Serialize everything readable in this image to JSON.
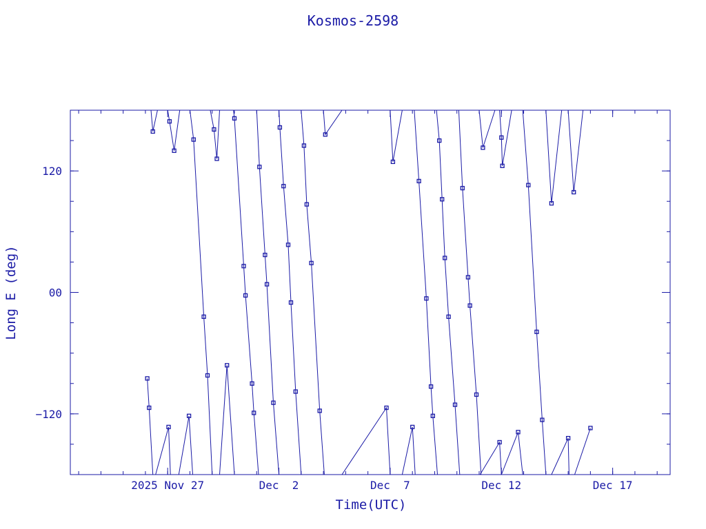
{
  "chart_data": {
    "type": "line",
    "title": "Kosmos-2598",
    "xlabel": "Time(UTC)",
    "ylabel": "Long E (deg)",
    "x_unit": "UTC date",
    "x_range": [
      "2025-11-22T15:00",
      "2025-12-19T14:00"
    ],
    "ylim": [
      -180,
      180
    ],
    "y_ticks": [
      120,
      0,
      -120
    ],
    "y_tick_labels": [
      "120",
      "00",
      "−120"
    ],
    "x_ticks": [
      "2025-11-27",
      "2025-12-02",
      "2025-12-07",
      "2025-12-12",
      "2025-12-17"
    ],
    "x_tick_labels": [
      "2025 Nov 27",
      "Dec  2",
      "Dec  7",
      "Dec 12",
      "Dec 17"
    ],
    "grid": false,
    "legend": "none",
    "color": "#1a1aa6",
    "series": [
      {
        "values": [
          [
            "2025-11-26T02:00",
            -85
          ],
          [
            "2025-11-26T04:00",
            -114
          ],
          [
            "2025-11-26T08:00",
            -180
          ]
        ]
      },
      {
        "values": [
          [
            "2025-11-26T06:00",
            180
          ],
          [
            "2025-11-26T08:00",
            159
          ],
          [
            "2025-11-26T13:00",
            180
          ]
        ]
      },
      {
        "values": [
          [
            "2025-11-26T11:00",
            -180
          ],
          [
            "2025-11-27T01:00",
            -133
          ],
          [
            "2025-11-27T03:00",
            -180
          ]
        ]
      },
      {
        "values": [
          [
            "2025-11-27T00:00",
            180
          ],
          [
            "2025-11-27T02:00",
            169
          ],
          [
            "2025-11-27T07:00",
            140
          ],
          [
            "2025-11-27T13:00",
            180
          ]
        ]
      },
      {
        "values": [
          [
            "2025-11-27T12:00",
            -180
          ],
          [
            "2025-11-27T23:00",
            -122
          ],
          [
            "2025-11-28T03:00",
            -180
          ]
        ]
      },
      {
        "values": [
          [
            "2025-11-28T00:00",
            180
          ],
          [
            "2025-11-28T04:00",
            151
          ],
          [
            "2025-11-28T15:00",
            -24
          ],
          [
            "2025-11-28T19:00",
            -82
          ],
          [
            "2025-11-29T00:00",
            -180
          ]
        ]
      },
      {
        "values": [
          [
            "2025-11-28T22:00",
            180
          ],
          [
            "2025-11-29T02:00",
            161
          ],
          [
            "2025-11-29T05:00",
            132
          ],
          [
            "2025-11-29T08:00",
            180
          ]
        ]
      },
      {
        "values": [
          [
            "2025-11-29T08:00",
            -180
          ],
          [
            "2025-11-29T16:00",
            -72
          ],
          [
            "2025-11-30T00:00",
            -180
          ]
        ]
      },
      {
        "values": [
          [
            "2025-11-29T23:00",
            180
          ],
          [
            "2025-11-30T00:00",
            172
          ],
          [
            "2025-11-30T10:00",
            26
          ],
          [
            "2025-11-30T12:00",
            -3
          ],
          [
            "2025-11-30T19:00",
            -90
          ],
          [
            "2025-11-30T21:00",
            -119
          ],
          [
            "2025-12-01T02:00",
            -180
          ]
        ]
      },
      {
        "values": [
          [
            "2025-12-01T00:00",
            180
          ],
          [
            "2025-12-01T03:00",
            124
          ],
          [
            "2025-12-01T09:00",
            37
          ],
          [
            "2025-12-01T11:00",
            8
          ],
          [
            "2025-12-01T18:00",
            -109
          ],
          [
            "2025-12-02T00:00",
            -180
          ]
        ]
      },
      {
        "values": [
          [
            "2025-12-02T00:00",
            180
          ],
          [
            "2025-12-02T01:00",
            163
          ],
          [
            "2025-12-02T05:00",
            105
          ],
          [
            "2025-12-02T10:00",
            47
          ],
          [
            "2025-12-02T13:00",
            -10
          ],
          [
            "2025-12-02T18:00",
            -98
          ],
          [
            "2025-12-03T00:00",
            -180
          ]
        ]
      },
      {
        "values": [
          [
            "2025-12-03T00:00",
            180
          ],
          [
            "2025-12-03T03:00",
            145
          ],
          [
            "2025-12-03T06:00",
            87
          ],
          [
            "2025-12-03T11:00",
            29
          ],
          [
            "2025-12-03T20:00",
            -117
          ],
          [
            "2025-12-04T01:00",
            -180
          ]
        ]
      },
      {
        "values": [
          [
            "2025-12-04T00:00",
            180
          ],
          [
            "2025-12-04T02:00",
            156
          ],
          [
            "2025-12-04T20:00",
            180
          ]
        ]
      },
      {
        "values": [
          [
            "2025-12-04T20:00",
            -180
          ],
          [
            "2025-12-06T20:00",
            -114
          ],
          [
            "2025-12-07T00:00",
            -180
          ]
        ]
      },
      {
        "values": [
          [
            "2025-12-07T00:00",
            180
          ],
          [
            "2025-12-07T03:00",
            129
          ],
          [
            "2025-12-07T13:00",
            180
          ]
        ]
      },
      {
        "values": [
          [
            "2025-12-07T13:00",
            -180
          ],
          [
            "2025-12-08T00:00",
            -133
          ],
          [
            "2025-12-08T03:00",
            -180
          ]
        ]
      },
      {
        "values": [
          [
            "2025-12-08T02:00",
            180
          ],
          [
            "2025-12-08T07:00",
            110
          ],
          [
            "2025-12-08T15:00",
            -6
          ],
          [
            "2025-12-08T20:00",
            -93
          ],
          [
            "2025-12-08T22:00",
            -122
          ],
          [
            "2025-12-09T03:00",
            -180
          ]
        ]
      },
      {
        "values": [
          [
            "2025-12-09T02:00",
            180
          ],
          [
            "2025-12-09T05:00",
            150
          ],
          [
            "2025-12-09T08:00",
            92
          ],
          [
            "2025-12-09T11:00",
            34
          ],
          [
            "2025-12-09T15:00",
            -24
          ],
          [
            "2025-12-09T22:00",
            -111
          ],
          [
            "2025-12-10T03:00",
            -180
          ]
        ]
      },
      {
        "values": [
          [
            "2025-12-10T02:00",
            180
          ],
          [
            "2025-12-10T06:00",
            103
          ],
          [
            "2025-12-10T12:00",
            15
          ],
          [
            "2025-12-10T14:00",
            -13
          ],
          [
            "2025-12-10T21:00",
            -101
          ],
          [
            "2025-12-11T02:00",
            -180
          ]
        ]
      },
      {
        "values": [
          [
            "2025-12-11T00:00",
            180
          ],
          [
            "2025-12-11T04:00",
            143
          ],
          [
            "2025-12-11T17:00",
            180
          ]
        ]
      },
      {
        "values": [
          [
            "2025-12-11T01:00",
            -180
          ],
          [
            "2025-12-11T22:00",
            -148
          ],
          [
            "2025-12-12T00:00",
            -180
          ]
        ]
      },
      {
        "values": [
          [
            "2025-12-11T22:00",
            180
          ],
          [
            "2025-12-12T00:00",
            153
          ],
          [
            "2025-12-12T01:00",
            125
          ],
          [
            "2025-12-12T11:00",
            180
          ]
        ]
      },
      {
        "values": [
          [
            "2025-12-12T00:00",
            -180
          ],
          [
            "2025-12-12T18:00",
            -138
          ],
          [
            "2025-12-12T23:00",
            -180
          ]
        ]
      },
      {
        "values": [
          [
            "2025-12-12T23:00",
            180
          ],
          [
            "2025-12-13T05:00",
            106
          ],
          [
            "2025-12-13T14:00",
            -39
          ],
          [
            "2025-12-13T20:00",
            -126
          ],
          [
            "2025-12-14T00:00",
            -180
          ]
        ]
      },
      {
        "values": [
          [
            "2025-12-14T00:00",
            180
          ],
          [
            "2025-12-14T06:00",
            88
          ],
          [
            "2025-12-14T17:00",
            180
          ]
        ]
      },
      {
        "values": [
          [
            "2025-12-14T06:00",
            -180
          ],
          [
            "2025-12-15T00:00",
            -144
          ],
          [
            "2025-12-15T01:00",
            -180
          ]
        ]
      },
      {
        "values": [
          [
            "2025-12-15T00:00",
            180
          ],
          [
            "2025-12-15T06:00",
            99
          ],
          [
            "2025-12-15T16:00",
            180
          ]
        ]
      },
      {
        "values": [
          [
            "2025-12-15T07:00",
            -180
          ],
          [
            "2025-12-16T00:00",
            -134
          ]
        ]
      }
    ]
  }
}
